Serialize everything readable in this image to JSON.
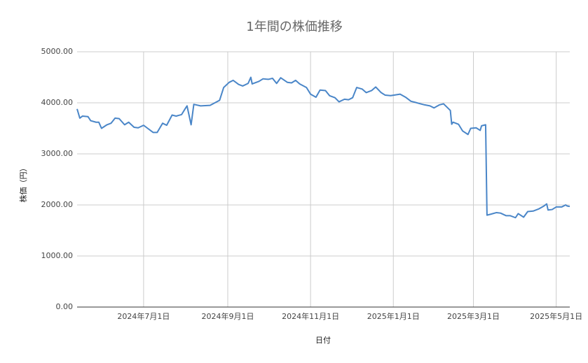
{
  "chart_data": {
    "type": "line",
    "title": "1年間の株価推移",
    "x_label": "日付",
    "y_label": "株価（円）",
    "x": [
      "2024-05-13",
      "2024-05-15",
      "2024-05-17",
      "2024-05-21",
      "2024-05-23",
      "2024-05-27",
      "2024-05-29",
      "2024-05-31",
      "2024-06-04",
      "2024-06-07",
      "2024-06-10",
      "2024-06-13",
      "2024-06-17",
      "2024-06-20",
      "2024-06-24",
      "2024-06-27",
      "2024-07-01",
      "2024-07-04",
      "2024-07-08",
      "2024-07-11",
      "2024-07-15",
      "2024-07-18",
      "2024-07-22",
      "2024-07-25",
      "2024-07-29",
      "2024-08-01",
      "2024-08-02",
      "2024-08-05",
      "2024-08-07",
      "2024-08-12",
      "2024-08-19",
      "2024-08-26",
      "2024-08-29",
      "2024-09-02",
      "2024-09-05",
      "2024-09-09",
      "2024-09-12",
      "2024-09-16",
      "2024-09-18",
      "2024-09-19",
      "2024-09-24",
      "2024-09-27",
      "2024-10-01",
      "2024-10-04",
      "2024-10-07",
      "2024-10-10",
      "2024-10-15",
      "2024-10-18",
      "2024-10-21",
      "2024-10-24",
      "2024-10-29",
      "2024-11-01",
      "2024-11-05",
      "2024-11-08",
      "2024-11-12",
      "2024-11-15",
      "2024-11-19",
      "2024-11-22",
      "2024-11-26",
      "2024-11-29",
      "2024-12-02",
      "2024-12-05",
      "2024-12-09",
      "2024-12-12",
      "2024-12-16",
      "2024-12-19",
      "2024-12-23",
      "2024-12-26",
      "2024-12-30",
      "2025-01-06",
      "2025-01-10",
      "2025-01-14",
      "2025-01-17",
      "2025-01-21",
      "2025-01-24",
      "2025-01-28",
      "2025-01-31",
      "2025-02-04",
      "2025-02-07",
      "2025-02-12",
      "2025-02-13",
      "2025-02-14",
      "2025-02-18",
      "2025-02-21",
      "2025-02-25",
      "2025-02-27",
      "2025-03-03",
      "2025-03-06",
      "2025-03-07",
      "2025-03-10",
      "2025-03-11",
      "2025-03-14",
      "2025-03-18",
      "2025-03-21",
      "2025-03-25",
      "2025-03-28",
      "2025-04-01",
      "2025-04-03",
      "2025-04-07",
      "2025-04-10",
      "2025-04-14",
      "2025-04-18",
      "2025-04-22",
      "2025-04-24",
      "2025-04-25",
      "2025-04-28",
      "2025-05-01",
      "2025-05-05",
      "2025-05-08",
      "2025-05-09",
      "2025-05-11"
    ],
    "series": [
      {
        "name": "株価",
        "color": "#4a86c8",
        "values": [
          3880,
          3700,
          3740,
          3730,
          3650,
          3620,
          3620,
          3500,
          3570,
          3600,
          3700,
          3690,
          3570,
          3620,
          3520,
          3510,
          3560,
          3500,
          3420,
          3420,
          3600,
          3560,
          3760,
          3740,
          3770,
          3900,
          3940,
          3570,
          3970,
          3940,
          3950,
          4050,
          4300,
          4400,
          4440,
          4360,
          4330,
          4380,
          4500,
          4370,
          4420,
          4470,
          4460,
          4480,
          4380,
          4490,
          4400,
          4390,
          4440,
          4370,
          4300,
          4170,
          4110,
          4250,
          4240,
          4140,
          4100,
          4020,
          4070,
          4060,
          4100,
          4300,
          4270,
          4200,
          4240,
          4310,
          4200,
          4150,
          4140,
          4170,
          4110,
          4030,
          4010,
          3980,
          3960,
          3940,
          3900,
          3960,
          3980,
          3850,
          3580,
          3620,
          3580,
          3450,
          3380,
          3500,
          3510,
          3460,
          3550,
          3570,
          1800,
          1820,
          1850,
          1840,
          1790,
          1790,
          1750,
          1830,
          1760,
          1870,
          1880,
          1920,
          1980,
          2020,
          1900,
          1910,
          1960,
          1960,
          2000,
          1980,
          1970
        ]
      }
    ],
    "xlim": [
      "2024-05-13",
      "2025-05-11"
    ],
    "xticks": [
      {
        "value": "2024-07-01",
        "label": "2024年7月1日"
      },
      {
        "value": "2024-09-01",
        "label": "2024年9月1日"
      },
      {
        "value": "2024-11-01",
        "label": "2024年11月1日"
      },
      {
        "value": "2025-01-01",
        "label": "2025年1月1日"
      },
      {
        "value": "2025-03-01",
        "label": "2025年3月1日"
      },
      {
        "value": "2025-05-01",
        "label": "2025年5月1日"
      }
    ],
    "ylim": [
      0,
      5000
    ],
    "yticks": [
      {
        "value": 0,
        "label": "0.00"
      },
      {
        "value": 1000,
        "label": "1000.00"
      },
      {
        "value": 2000,
        "label": "2000.00"
      },
      {
        "value": 3000,
        "label": "3000.00"
      },
      {
        "value": 4000,
        "label": "4000.00"
      },
      {
        "value": 5000,
        "label": "5000.00"
      }
    ],
    "grid": true
  }
}
